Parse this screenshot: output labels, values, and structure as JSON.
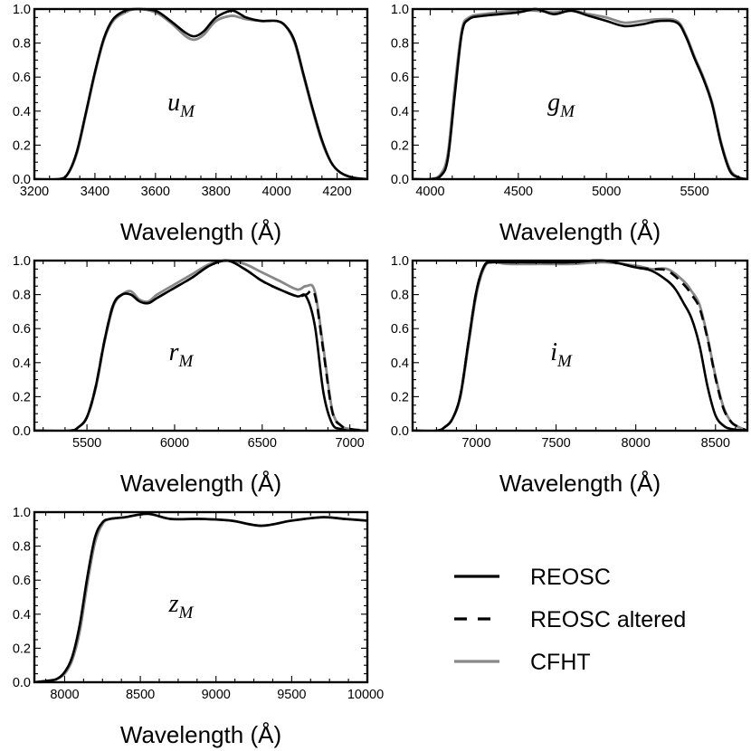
{
  "chart_data": {
    "type": "line",
    "series_styles": [
      {
        "name": "REOSC",
        "color": "#000000",
        "dash": "solid"
      },
      {
        "name": "REOSC altered",
        "color": "#000000",
        "dash": "dashed"
      },
      {
        "name": "CFHT",
        "color": "#888888",
        "dash": "solid"
      }
    ],
    "legend": {
      "entries": [
        "REOSC",
        "REOSC altered",
        "CFHT"
      ],
      "placement": "lower-right"
    },
    "panels": [
      {
        "id": "u",
        "band_label": "u",
        "band_sub": "M",
        "xlabel": "Wavelength (Å)",
        "xlim": [
          3200,
          4300
        ],
        "ylim": [
          0,
          1.0
        ],
        "xticks": [
          3200,
          3400,
          3600,
          3800,
          4000,
          4200
        ],
        "xtick_labels": [
          "3200",
          "3400",
          "3600",
          "3800",
          "4000",
          "4200"
        ],
        "yticks": [
          0,
          0.2,
          0.4,
          0.6,
          0.8,
          1.0
        ],
        "ytick_labels": [
          "0.0",
          "0.2",
          "0.4",
          "0.6",
          "0.8",
          "1.0"
        ],
        "series": [
          {
            "name": "CFHT",
            "x": [
              3200,
              3280,
              3310,
              3340,
              3370,
              3400,
              3430,
              3460,
              3500,
              3540,
              3600,
              3650,
              3700,
              3730,
              3760,
              3800,
              3850,
              3880,
              3900,
              3950,
              4000,
              4030,
              4060,
              4090,
              4120,
              4150,
              4180,
              4210,
              4250,
              4300
            ],
            "y": [
              0,
              0,
              0.03,
              0.15,
              0.38,
              0.62,
              0.82,
              0.93,
              0.98,
              1.0,
              0.98,
              0.92,
              0.84,
              0.82,
              0.85,
              0.93,
              0.96,
              0.95,
              0.94,
              0.93,
              0.93,
              0.9,
              0.8,
              0.6,
              0.4,
              0.22,
              0.1,
              0.04,
              0.01,
              0
            ]
          },
          {
            "name": "REOSC",
            "x": [
              3200,
              3280,
              3310,
              3340,
              3370,
              3400,
              3430,
              3460,
              3500,
              3540,
              3600,
              3650,
              3700,
              3730,
              3760,
              3800,
              3850,
              3880,
              3900,
              3950,
              4000,
              4030,
              4060,
              4090,
              4120,
              4150,
              4180,
              4210,
              4250,
              4300
            ],
            "y": [
              0,
              0,
              0.03,
              0.16,
              0.39,
              0.63,
              0.83,
              0.94,
              0.99,
              1.0,
              0.99,
              0.93,
              0.86,
              0.84,
              0.87,
              0.95,
              0.99,
              0.97,
              0.95,
              0.93,
              0.93,
              0.9,
              0.81,
              0.61,
              0.41,
              0.23,
              0.1,
              0.04,
              0.01,
              0
            ]
          }
        ]
      },
      {
        "id": "g",
        "band_label": "g",
        "band_sub": "M",
        "xlabel": "Wavelength (Å)",
        "xlim": [
          3900,
          5800
        ],
        "ylim": [
          0,
          1.0
        ],
        "xticks": [
          4000,
          4500,
          5000,
          5500
        ],
        "xtick_labels": [
          "4000",
          "4500",
          "5000",
          "5500"
        ],
        "yticks": [
          0,
          0.2,
          0.4,
          0.6,
          0.8,
          1.0
        ],
        "ytick_labels": [
          "0.0",
          "0.2",
          "0.4",
          "0.6",
          "0.8",
          "1.0"
        ],
        "series": [
          {
            "name": "CFHT",
            "x": [
              3900,
              4000,
              4060,
              4100,
              4140,
              4180,
              4220,
              4300,
              4500,
              4600,
              4700,
              4800,
              4900,
              5000,
              5100,
              5200,
              5300,
              5400,
              5450,
              5500,
              5550,
              5600,
              5650,
              5700,
              5750,
              5800
            ],
            "y": [
              0,
              0,
              0.03,
              0.15,
              0.55,
              0.88,
              0.95,
              0.97,
              0.99,
              0.99,
              0.98,
              0.99,
              0.97,
              0.95,
              0.92,
              0.93,
              0.94,
              0.93,
              0.85,
              0.72,
              0.6,
              0.45,
              0.22,
              0.06,
              0.01,
              0
            ]
          },
          {
            "name": "REOSC",
            "x": [
              3900,
              4000,
              4060,
              4100,
              4140,
              4180,
              4220,
              4300,
              4500,
              4600,
              4700,
              4800,
              4900,
              5000,
              5100,
              5200,
              5300,
              5400,
              5450,
              5500,
              5550,
              5600,
              5650,
              5700,
              5750,
              5800
            ],
            "y": [
              0,
              0,
              0.02,
              0.12,
              0.5,
              0.86,
              0.94,
              0.96,
              0.98,
              1.0,
              0.97,
              0.99,
              0.96,
              0.93,
              0.9,
              0.91,
              0.93,
              0.92,
              0.84,
              0.71,
              0.59,
              0.44,
              0.21,
              0.05,
              0.01,
              0
            ]
          }
        ]
      },
      {
        "id": "r",
        "band_label": "r",
        "band_sub": "M",
        "xlabel": "Wavelength (Å)",
        "xlim": [
          5200,
          7100
        ],
        "ylim": [
          0,
          1.0
        ],
        "xticks": [
          5500,
          6000,
          6500,
          7000
        ],
        "xtick_labels": [
          "5500",
          "6000",
          "6500",
          "7000"
        ],
        "yticks": [
          0,
          0.2,
          0.4,
          0.6,
          0.8,
          1.0
        ],
        "ytick_labels": [
          "0.0",
          "0.2",
          "0.4",
          "0.6",
          "0.8",
          "1.0"
        ],
        "series": [
          {
            "name": "CFHT",
            "x": [
              5200,
              5400,
              5450,
              5500,
              5550,
              5600,
              5650,
              5700,
              5750,
              5800,
              5850,
              5900,
              6000,
              6100,
              6200,
              6300,
              6400,
              6500,
              6600,
              6700,
              6750,
              6800,
              6850,
              6900,
              6950,
              7000,
              7100
            ],
            "y": [
              0,
              0,
              0.02,
              0.08,
              0.25,
              0.52,
              0.73,
              0.8,
              0.82,
              0.77,
              0.76,
              0.8,
              0.86,
              0.92,
              0.98,
              1.0,
              0.98,
              0.93,
              0.88,
              0.83,
              0.85,
              0.82,
              0.48,
              0.12,
              0.03,
              0.01,
              0
            ]
          },
          {
            "name": "REOSC",
            "x": [
              5200,
              5400,
              5450,
              5500,
              5550,
              5600,
              5650,
              5700,
              5750,
              5800,
              5850,
              5900,
              6000,
              6100,
              6200,
              6300,
              6400,
              6500,
              6600,
              6700,
              6750,
              6800,
              6850,
              6900,
              6950,
              7000,
              7100
            ],
            "y": [
              0,
              0,
              0.02,
              0.08,
              0.26,
              0.53,
              0.74,
              0.8,
              0.8,
              0.76,
              0.75,
              0.78,
              0.84,
              0.9,
              0.97,
              1.0,
              0.95,
              0.88,
              0.83,
              0.79,
              0.79,
              0.62,
              0.22,
              0.04,
              0.01,
              0,
              0
            ]
          },
          {
            "name": "REOSC altered",
            "x": [
              5200,
              5400,
              5450,
              5500,
              5550,
              5600,
              5650,
              5700,
              5750,
              5800,
              5850,
              5900,
              6000,
              6100,
              6200,
              6300,
              6400,
              6500,
              6600,
              6700,
              6750,
              6800,
              6850,
              6900,
              6950,
              7000,
              7100
            ],
            "y": [
              0,
              0,
              0.02,
              0.08,
              0.26,
              0.53,
              0.74,
              0.8,
              0.8,
              0.76,
              0.75,
              0.78,
              0.84,
              0.9,
              0.97,
              1.0,
              0.95,
              0.88,
              0.83,
              0.79,
              0.8,
              0.8,
              0.46,
              0.11,
              0.03,
              0.01,
              0
            ]
          }
        ]
      },
      {
        "id": "i",
        "band_label": "i",
        "band_sub": "M",
        "xlabel": "Wavelength (Å)",
        "xlim": [
          6600,
          8700
        ],
        "ylim": [
          0,
          1.0
        ],
        "xticks": [
          7000,
          7500,
          8000,
          8500
        ],
        "xtick_labels": [
          "7000",
          "7500",
          "8000",
          "8500"
        ],
        "yticks": [
          0,
          0.2,
          0.4,
          0.6,
          0.8,
          1.0
        ],
        "ytick_labels": [
          "0.0",
          "0.2",
          "0.4",
          "0.6",
          "0.8",
          "1.0"
        ],
        "series": [
          {
            "name": "CFHT",
            "x": [
              6600,
              6750,
              6800,
              6850,
              6900,
              6950,
              7000,
              7050,
              7100,
              7200,
              7400,
              7600,
              7800,
              8000,
              8100,
              8200,
              8300,
              8350,
              8400,
              8450,
              8500,
              8550,
              8600,
              8650,
              8700
            ],
            "y": [
              0,
              0,
              0.02,
              0.07,
              0.2,
              0.5,
              0.8,
              0.96,
              0.99,
              0.98,
              0.98,
              0.98,
              0.99,
              0.97,
              0.95,
              0.95,
              0.88,
              0.82,
              0.74,
              0.55,
              0.32,
              0.14,
              0.05,
              0.02,
              0
            ]
          },
          {
            "name": "REOSC",
            "x": [
              6600,
              6750,
              6800,
              6850,
              6900,
              6950,
              7000,
              7050,
              7100,
              7200,
              7400,
              7600,
              7800,
              8000,
              8100,
              8200,
              8250,
              8300,
              8350,
              8400,
              8450,
              8500,
              8550,
              8600,
              8700
            ],
            "y": [
              0,
              0,
              0.02,
              0.07,
              0.21,
              0.52,
              0.82,
              0.97,
              0.99,
              0.99,
              0.99,
              0.99,
              1.0,
              0.96,
              0.94,
              0.88,
              0.83,
              0.75,
              0.66,
              0.5,
              0.26,
              0.09,
              0.03,
              0.01,
              0
            ]
          },
          {
            "name": "REOSC altered",
            "x": [
              6600,
              6750,
              6800,
              6850,
              6900,
              6950,
              7000,
              7050,
              7100,
              7200,
              7400,
              7600,
              7800,
              8000,
              8100,
              8200,
              8300,
              8350,
              8400,
              8450,
              8500,
              8550,
              8600,
              8650,
              8700
            ],
            "y": [
              0,
              0,
              0.02,
              0.07,
              0.21,
              0.52,
              0.82,
              0.97,
              0.99,
              0.99,
              0.99,
              0.99,
              1.0,
              0.96,
              0.95,
              0.94,
              0.86,
              0.8,
              0.72,
              0.54,
              0.31,
              0.13,
              0.05,
              0.02,
              0
            ]
          }
        ]
      },
      {
        "id": "z",
        "band_label": "z",
        "band_sub": "M",
        "xlabel": "Wavelength (Å)",
        "xlim": [
          7800,
          10000
        ],
        "ylim": [
          0,
          1.0
        ],
        "xticks": [
          8000,
          8500,
          9000,
          9500,
          10000
        ],
        "xtick_labels": [
          "8000",
          "8500",
          "9000",
          "9500",
          "10000"
        ],
        "yticks": [
          0,
          0.2,
          0.4,
          0.6,
          0.8,
          1.0
        ],
        "ytick_labels": [
          "0.0",
          "0.2",
          "0.4",
          "0.6",
          "0.8",
          "1.0"
        ],
        "series": [
          {
            "name": "CFHT",
            "x": [
              7800,
              7900,
              7950,
              8000,
              8050,
              8100,
              8150,
              8200,
              8250,
              8300,
              8400,
              8550,
              8700,
              8900,
              9100,
              9300,
              9500,
              9700,
              9850,
              10000
            ],
            "y": [
              0,
              0.01,
              0.02,
              0.05,
              0.13,
              0.3,
              0.58,
              0.82,
              0.93,
              0.96,
              0.97,
              0.99,
              0.96,
              0.96,
              0.95,
              0.92,
              0.95,
              0.97,
              0.96,
              0.95
            ]
          },
          {
            "name": "REOSC",
            "x": [
              7800,
              7900,
              7950,
              8000,
              8050,
              8100,
              8150,
              8200,
              8250,
              8300,
              8400,
              8550,
              8700,
              8900,
              9100,
              9300,
              9500,
              9700,
              9850,
              10000
            ],
            "y": [
              0,
              0.01,
              0.02,
              0.06,
              0.15,
              0.34,
              0.62,
              0.85,
              0.94,
              0.96,
              0.97,
              0.99,
              0.96,
              0.96,
              0.95,
              0.92,
              0.95,
              0.97,
              0.96,
              0.95
            ]
          }
        ]
      }
    ]
  }
}
